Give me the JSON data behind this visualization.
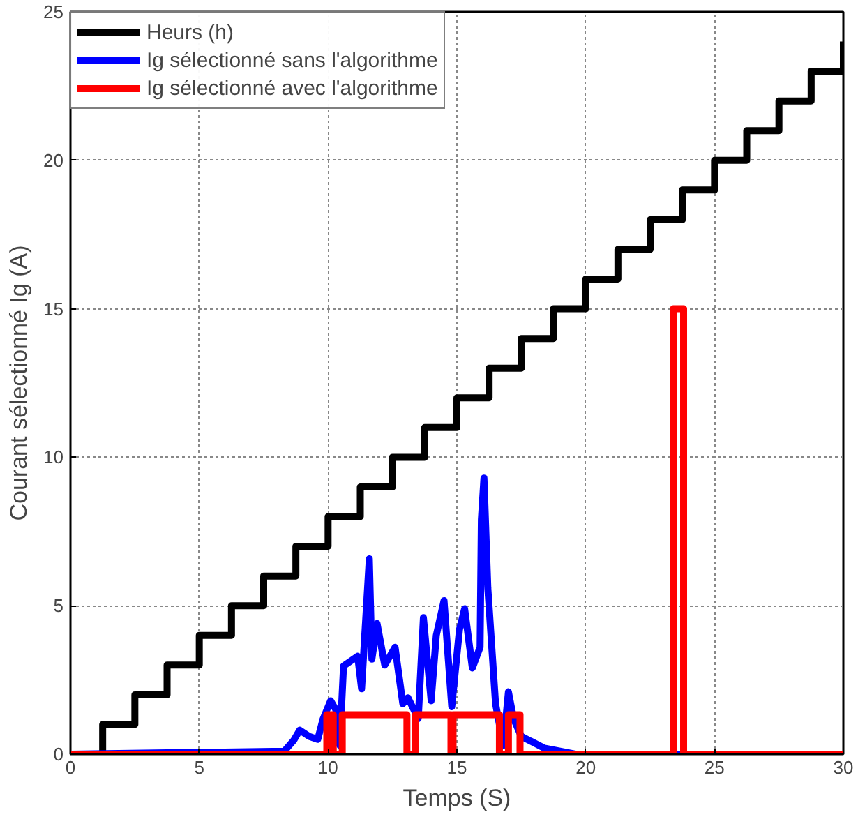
{
  "chart_data": {
    "type": "line",
    "xlabel": "Temps (S)",
    "ylabel": "Courant sélectionné Ig (A)",
    "xlim": [
      0,
      30
    ],
    "ylim": [
      0,
      25
    ],
    "xticks": [
      0,
      5,
      10,
      15,
      20,
      25,
      30
    ],
    "yticks": [
      0,
      5,
      10,
      15,
      20,
      25
    ],
    "grid": true,
    "legend": "top left",
    "line_style": "solid",
    "series": [
      {
        "name": "Heurs (h)",
        "color": "#000000",
        "type": "step",
        "x": [
          0,
          1.25,
          2.5,
          3.75,
          5,
          6.25,
          7.5,
          8.75,
          10,
          11.25,
          12.5,
          13.75,
          15,
          16.25,
          17.5,
          18.75,
          20,
          21.25,
          22.5,
          23.75,
          25,
          26.25,
          27.5,
          28.75,
          30
        ],
        "values": [
          0,
          1,
          2,
          3,
          4,
          5,
          6,
          7,
          8,
          9,
          10,
          11,
          12,
          13,
          14,
          15,
          16,
          17,
          18,
          19,
          20,
          21,
          22,
          23,
          24
        ]
      },
      {
        "name": "Ig sélectionné sans l'algorithme",
        "color": "#0000ff",
        "x": [
          0,
          8.3,
          8.67,
          8.9,
          9.26,
          9.6,
          9.8,
          10.1,
          10.3,
          10.45,
          10.6,
          11.15,
          11.3,
          11.6,
          11.7,
          11.9,
          12.2,
          12.6,
          12.9,
          13.1,
          13.5,
          13.7,
          14.0,
          14.2,
          14.5,
          14.8,
          15.1,
          15.3,
          15.6,
          15.9,
          15.95,
          16.05,
          16.2,
          16.5,
          16.8,
          17.0,
          17.2,
          17.5,
          18.4,
          19.6,
          30
        ],
        "values": [
          0,
          0.1,
          0.47,
          0.81,
          0.6,
          0.5,
          1.17,
          1.8,
          1.5,
          0.3,
          2.97,
          3.3,
          2.2,
          6.58,
          3.2,
          4.4,
          3.0,
          3.6,
          1.7,
          1.9,
          1.2,
          4.6,
          1.8,
          4.0,
          5.17,
          1.6,
          4.2,
          4.9,
          2.9,
          3.6,
          7.9,
          9.3,
          5.6,
          1.7,
          0.3,
          2.1,
          1.2,
          0.6,
          0.2,
          0,
          0
        ]
      },
      {
        "name": "Ig sélectionné avec l'algorithme",
        "color": "#ff0000",
        "x": [
          0,
          9.95,
          9.95,
          10.2,
          10.2,
          10.55,
          10.55,
          13.06,
          13.06,
          13.4,
          13.4,
          14.77,
          14.77,
          14.85,
          14.85,
          16.65,
          16.65,
          17.0,
          17.0,
          17.45,
          17.45,
          23.4,
          23.4,
          23.8,
          23.8,
          30
        ],
        "values": [
          0,
          0,
          1.33,
          1.33,
          0,
          0,
          1.33,
          1.33,
          0,
          0,
          1.33,
          1.33,
          0,
          0,
          1.33,
          1.33,
          0,
          0,
          1.33,
          1.33,
          0,
          0,
          15,
          15,
          0,
          0
        ]
      }
    ]
  }
}
